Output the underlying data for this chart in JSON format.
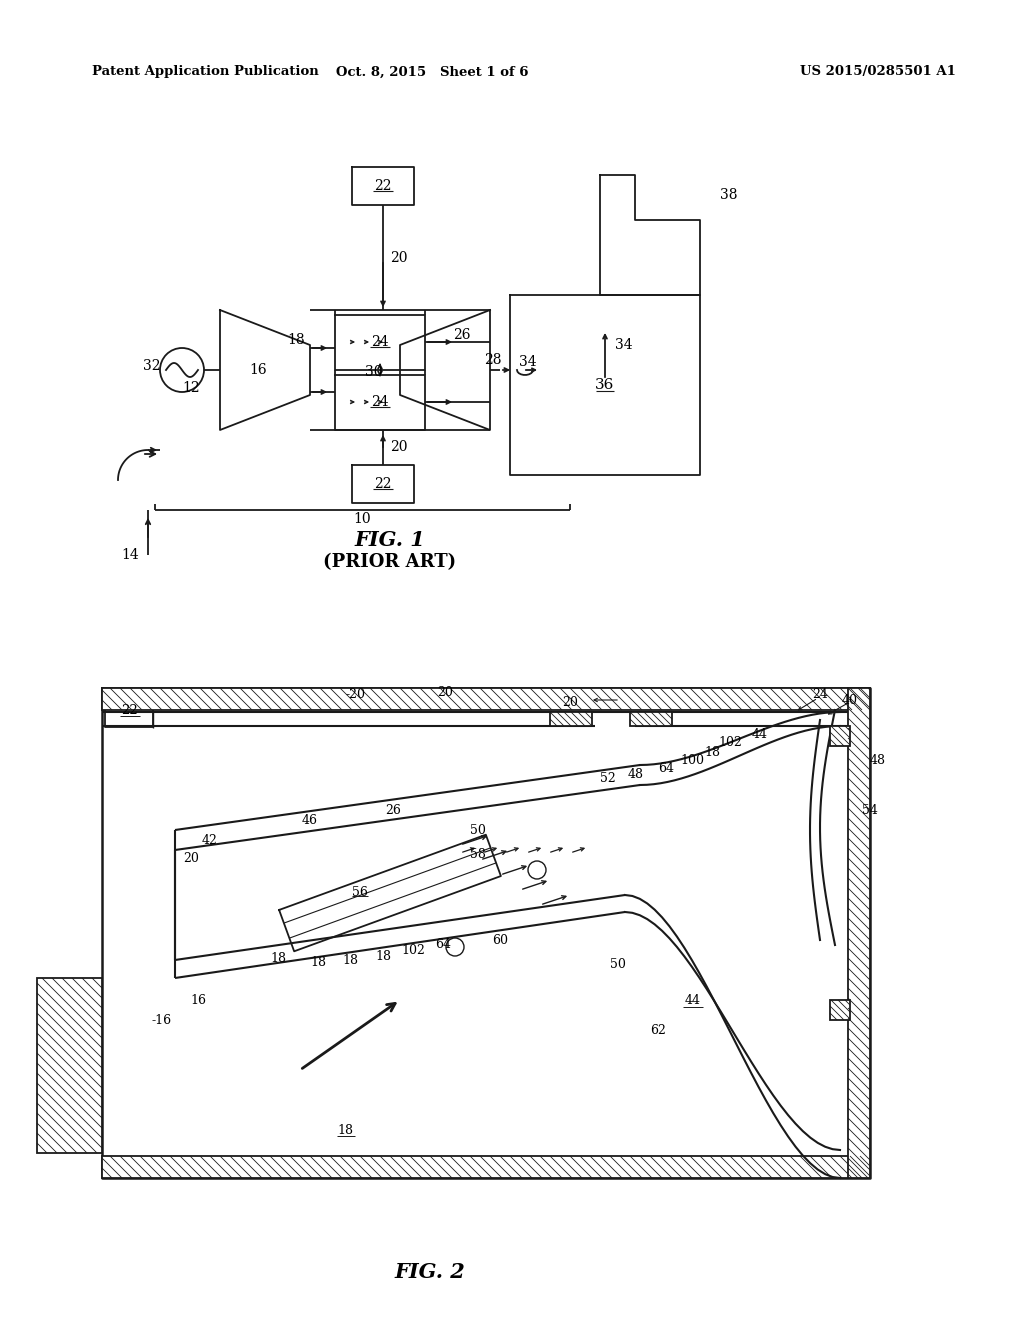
{
  "header_left": "Patent Application Publication",
  "header_mid": "Oct. 8, 2015   Sheet 1 of 6",
  "header_right": "US 2015/0285501 A1",
  "bg_color": "#ffffff",
  "lc": "#1a1a1a"
}
